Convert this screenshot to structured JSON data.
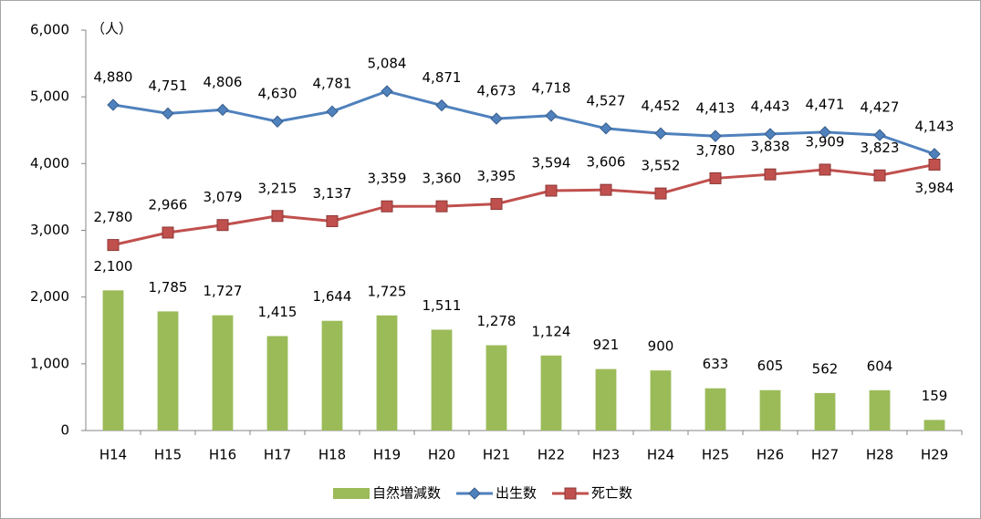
{
  "chart_data": {
    "type": "combo",
    "y_label": "（人）",
    "categories": [
      "H14",
      "H15",
      "H16",
      "H17",
      "H18",
      "H19",
      "H20",
      "H21",
      "H22",
      "H23",
      "H24",
      "H25",
      "H26",
      "H27",
      "H28",
      "H29"
    ],
    "ylim": [
      0,
      6000
    ],
    "yticks": [
      0,
      {
        "value": 1000,
        "label": "1,000"
      },
      {
        "value": 2000,
        "label": "2,000"
      },
      {
        "value": 3000,
        "label": "3,000"
      },
      {
        "value": 4000,
        "label": "4,000"
      },
      {
        "value": 5000,
        "label": "5,000"
      },
      {
        "value": 6000,
        "label": "6,000"
      }
    ],
    "series": [
      {
        "name": "自然増減数",
        "type": "bar",
        "color": "#9bbb59",
        "values": [
          2100,
          1785,
          1727,
          1415,
          1644,
          1725,
          1511,
          1278,
          1124,
          921,
          900,
          633,
          605,
          562,
          604,
          159
        ],
        "value_labels": [
          "2,100",
          "1,785",
          "1,727",
          "1,415",
          "1,644",
          "1,725",
          "1,511",
          "1,278",
          "1,124",
          "921",
          "900",
          "633",
          "605",
          "562",
          "604",
          "159"
        ]
      },
      {
        "name": "出生数",
        "type": "line",
        "marker": "diamond",
        "color": "#4f81bd",
        "values": [
          4880,
          4751,
          4806,
          4630,
          4781,
          5084,
          4871,
          4673,
          4718,
          4527,
          4452,
          4413,
          4443,
          4471,
          4427,
          4143
        ],
        "value_labels": [
          "4,880",
          "4,751",
          "4,806",
          "4,630",
          "4,781",
          "5,084",
          "4,871",
          "4,673",
          "4,718",
          "4,527",
          "4,452",
          "4,413",
          "4,443",
          "4,471",
          "4,427",
          "4,143"
        ]
      },
      {
        "name": "死亡数",
        "type": "line",
        "marker": "square",
        "color": "#c0504d",
        "values": [
          2780,
          2966,
          3079,
          3215,
          3137,
          3359,
          3360,
          3395,
          3594,
          3606,
          3552,
          3780,
          3838,
          3909,
          3823,
          3984
        ],
        "value_labels": [
          "2,780",
          "2,966",
          "3,079",
          "3,215",
          "3,137",
          "3,359",
          "3,360",
          "3,395",
          "3,594",
          "3,606",
          "3,552",
          "3,780",
          "3,838",
          "3,909",
          "3,823",
          "3,984"
        ]
      }
    ]
  }
}
